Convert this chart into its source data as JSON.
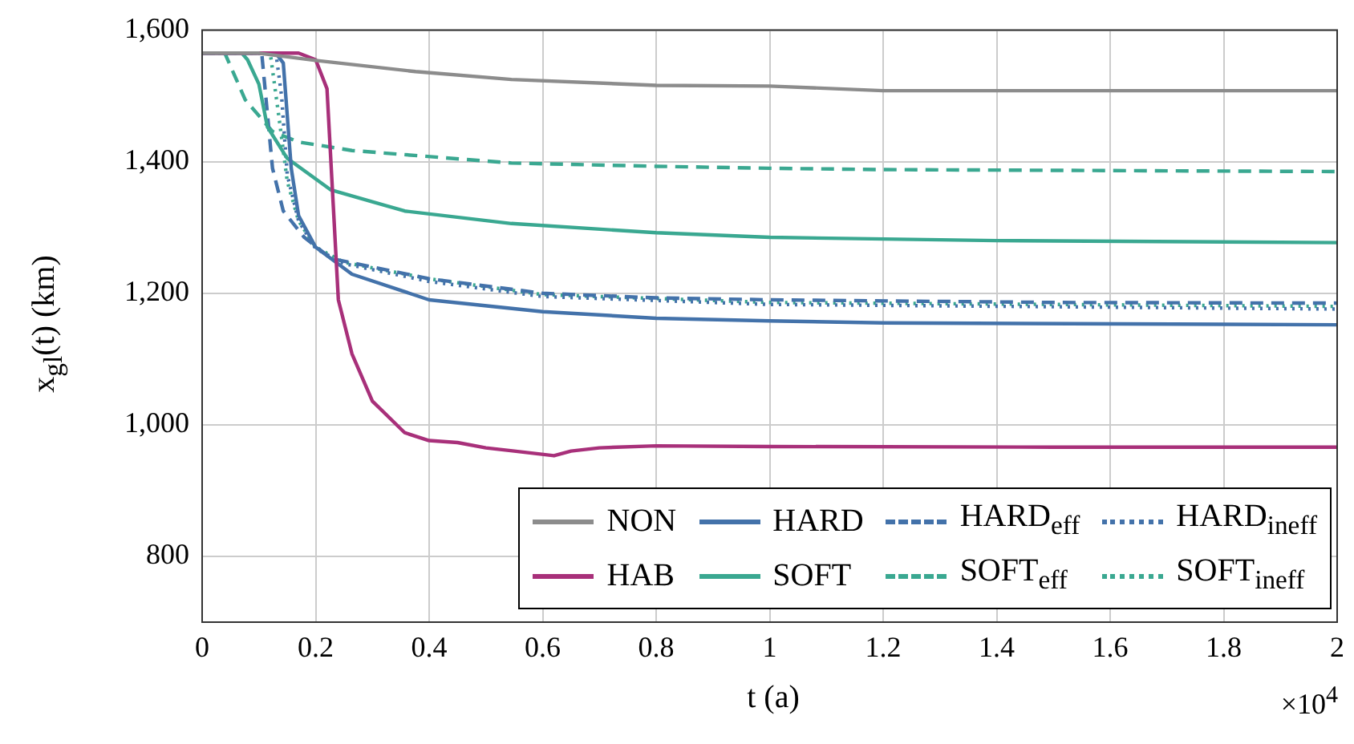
{
  "chart_data": {
    "type": "line",
    "xlabel": "t (a)",
    "ylabel": "x$_{gl}$(t) (km)",
    "annotations": [
      "×10$^{4}$"
    ],
    "xlim": [
      0,
      2
    ],
    "xticks": [
      0,
      0.2,
      0.4,
      0.6,
      0.8,
      1,
      1.2,
      1.4,
      1.6,
      1.8,
      2
    ],
    "ylim": [
      700,
      1600
    ],
    "yticks": [
      {
        "value": 800,
        "label": "800"
      },
      {
        "value": 1000,
        "label": "1,000"
      },
      {
        "value": 1200,
        "label": "1,200"
      },
      {
        "value": 1400,
        "label": "1,400"
      },
      {
        "value": 1600,
        "label": "1,600"
      }
    ],
    "grid": true,
    "legend": "bottom right",
    "marker": "none",
    "series": [
      {
        "name": "NON",
        "color": "#8c8c8c",
        "line_style": "solid",
        "x": [
          0,
          0.1,
          0.2,
          0.376,
          0.545,
          0.8,
          1,
          1.2,
          1.4,
          2
        ],
        "values": [
          1565,
          1565,
          1554,
          1537,
          1525,
          1516,
          1515,
          1508,
          1508,
          1508
        ]
      },
      {
        "name": "HAB",
        "color": "#a8307a",
        "line_style": "solid",
        "x": [
          0,
          0.17,
          0.2,
          0.22,
          0.24,
          0.264,
          0.3,
          0.357,
          0.4,
          0.45,
          0.5,
          0.55,
          0.62,
          0.65,
          0.7,
          0.8,
          1,
          1.5,
          2
        ],
        "values": [
          1565,
          1565,
          1555,
          1511,
          1190,
          1108,
          1036,
          988,
          976,
          973,
          965,
          960,
          953,
          960,
          965,
          968,
          967,
          966,
          966
        ]
      },
      {
        "name": "HARD",
        "color": "#4372aa",
        "line_style": "solid",
        "x": [
          0,
          0.13,
          0.143,
          0.157,
          0.17,
          0.2,
          0.264,
          0.4,
          0.6,
          0.8,
          1,
          1.2,
          2
        ],
        "values": [
          1565,
          1565,
          1550,
          1390,
          1318,
          1270,
          1229,
          1190,
          1172,
          1162,
          1158,
          1155,
          1152
        ]
      },
      {
        "name": "SOFT",
        "color": "#3aa891",
        "line_style": "solid",
        "x": [
          0,
          0.07,
          0.08,
          0.1,
          0.115,
          0.15,
          0.227,
          0.357,
          0.545,
          0.8,
          1,
          1.4,
          2
        ],
        "values": [
          1565,
          1565,
          1555,
          1518,
          1453,
          1405,
          1357,
          1325,
          1306,
          1292,
          1285,
          1280,
          1277
        ]
      },
      {
        "name": "HARD$_{eff}$",
        "color": "#4372aa",
        "line_style": "dashed",
        "x": [
          0,
          0.105,
          0.124,
          0.143,
          0.18,
          0.227,
          0.4,
          0.6,
          0.8,
          1,
          1.5,
          2
        ],
        "values": [
          1565,
          1565,
          1390,
          1325,
          1285,
          1253,
          1222,
          1200,
          1193,
          1190,
          1186,
          1185
        ]
      },
      {
        "name": "SOFT$_{eff}$",
        "color": "#3aa891",
        "line_style": "dashed",
        "x": [
          0,
          0.04,
          0.076,
          0.124,
          0.17,
          0.264,
          0.545,
          0.8,
          1,
          1.2,
          2
        ],
        "values": [
          1565,
          1565,
          1494,
          1446,
          1430,
          1417,
          1398,
          1393,
          1390,
          1388,
          1385
        ]
      },
      {
        "name": "HARD$_{ineff}$",
        "color": "#4372aa",
        "line_style": "dotted",
        "x": [
          0,
          0.13,
          0.14,
          0.15,
          0.17,
          0.2,
          0.25,
          0.4,
          0.6,
          1,
          2
        ],
        "values": [
          1565,
          1565,
          1500,
          1380,
          1310,
          1268,
          1245,
          1218,
          1195,
          1183,
          1176
        ]
      },
      {
        "name": "SOFT$_{ineff}$",
        "color": "#3aa891",
        "line_style": "dotted",
        "x": [
          0,
          0.12,
          0.135,
          0.15,
          0.17,
          0.2,
          0.25,
          0.4,
          0.6,
          1,
          2
        ],
        "values": [
          1565,
          1565,
          1470,
          1370,
          1310,
          1270,
          1247,
          1222,
          1198,
          1186,
          1180
        ]
      }
    ]
  }
}
